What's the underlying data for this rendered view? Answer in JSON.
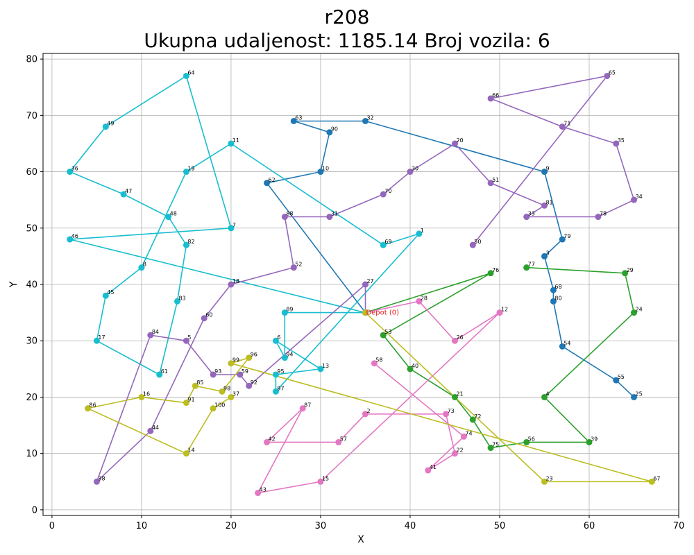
{
  "chart_data": {
    "type": "scatter",
    "title_line1": "r208",
    "title_line2": "Ukupna udaljenost: 1185.14    Broj vozila: 6",
    "xlabel": "X",
    "ylabel": "Y",
    "xlim": [
      -1,
      70
    ],
    "ylim": [
      -1,
      81
    ],
    "xticks": [
      0,
      10,
      20,
      30,
      40,
      50,
      60,
      70
    ],
    "yticks": [
      0,
      10,
      20,
      30,
      40,
      50,
      60,
      70,
      80
    ],
    "grid": true,
    "depot": {
      "x": 35,
      "y": 35,
      "label": "Depot (0)"
    },
    "series": [
      {
        "color": "#1f77b4",
        "points": [
          {
            "id": "0",
            "x": 35,
            "y": 35
          },
          {
            "id": "62",
            "x": 24,
            "y": 58
          },
          {
            "id": "10",
            "x": 30,
            "y": 60
          },
          {
            "id": "90",
            "x": 31,
            "y": 67
          },
          {
            "id": "63",
            "x": 27,
            "y": 69
          },
          {
            "id": "32",
            "x": 35,
            "y": 69
          },
          {
            "id": "9",
            "x": 55,
            "y": 60
          },
          {
            "id": "79",
            "x": 57,
            "y": 48
          },
          {
            "id": "3",
            "x": 55,
            "y": 45
          },
          {
            "id": "68",
            "x": 56,
            "y": 39
          },
          {
            "id": "80",
            "x": 56,
            "y": 37
          },
          {
            "id": "54",
            "x": 57,
            "y": 29
          },
          {
            "id": "55",
            "x": 63,
            "y": 23
          },
          {
            "id": "25",
            "x": 65,
            "y": 20
          }
        ]
      },
      {
        "color": "#2ca02c",
        "points": [
          {
            "id": "0",
            "x": 35,
            "y": 35
          },
          {
            "id": "76",
            "x": 49,
            "y": 42
          },
          {
            "id": "53",
            "x": 37,
            "y": 31
          },
          {
            "id": "40",
            "x": 40,
            "y": 25
          },
          {
            "id": "21",
            "x": 45,
            "y": 20
          },
          {
            "id": "72",
            "x": 47,
            "y": 16
          },
          {
            "id": "75",
            "x": 49,
            "y": 11
          },
          {
            "id": "56",
            "x": 53,
            "y": 12
          },
          {
            "id": "39",
            "x": 60,
            "y": 12
          },
          {
            "id": "4",
            "x": 55,
            "y": 20
          },
          {
            "id": "24",
            "x": 65,
            "y": 35
          },
          {
            "id": "29",
            "x": 64,
            "y": 42
          },
          {
            "id": "77",
            "x": 53,
            "y": 43
          }
        ]
      },
      {
        "color": "#17becf",
        "points": [
          {
            "id": "0",
            "x": 35,
            "y": 35
          },
          {
            "id": "89",
            "x": 26,
            "y": 35
          },
          {
            "id": "94",
            "x": 26,
            "y": 27
          },
          {
            "id": "6",
            "x": 25,
            "y": 30
          },
          {
            "id": "13",
            "x": 30,
            "y": 25
          },
          {
            "id": "95",
            "x": 25,
            "y": 24
          },
          {
            "id": "97",
            "x": 25,
            "y": 21
          },
          {
            "id": "1",
            "x": 41,
            "y": 49
          },
          {
            "id": "69",
            "x": 37,
            "y": 47
          },
          {
            "id": "11",
            "x": 20,
            "y": 65
          },
          {
            "id": "19",
            "x": 15,
            "y": 60
          },
          {
            "id": "8",
            "x": 10,
            "y": 43
          },
          {
            "id": "45",
            "x": 6,
            "y": 38
          },
          {
            "id": "17",
            "x": 5,
            "y": 30
          },
          {
            "id": "61",
            "x": 12,
            "y": 24
          },
          {
            "id": "83",
            "x": 14,
            "y": 37
          },
          {
            "id": "82",
            "x": 15,
            "y": 47
          },
          {
            "id": "48",
            "x": 13,
            "y": 52
          },
          {
            "id": "47",
            "x": 8,
            "y": 56
          },
          {
            "id": "36",
            "x": 2,
            "y": 60
          },
          {
            "id": "49",
            "x": 6,
            "y": 68
          },
          {
            "id": "64",
            "x": 15,
            "y": 77
          },
          {
            "id": "7",
            "x": 20,
            "y": 50
          },
          {
            "id": "46",
            "x": 2,
            "y": 48
          },
          {
            "id": "0",
            "x": 35,
            "y": 35
          }
        ]
      },
      {
        "color": "#9467bd",
        "points": [
          {
            "id": "0",
            "x": 35,
            "y": 35
          },
          {
            "id": "27",
            "x": 35,
            "y": 40
          },
          {
            "id": "92",
            "x": 22,
            "y": 22
          },
          {
            "id": "59",
            "x": 21,
            "y": 24
          },
          {
            "id": "93",
            "x": 18,
            "y": 24
          },
          {
            "id": "5",
            "x": 15,
            "y": 30
          },
          {
            "id": "84",
            "x": 11,
            "y": 31
          },
          {
            "id": "38",
            "x": 5,
            "y": 5
          },
          {
            "id": "44",
            "x": 11,
            "y": 14
          },
          {
            "id": "60",
            "x": 17,
            "y": 34
          },
          {
            "id": "18",
            "x": 20,
            "y": 40
          },
          {
            "id": "52",
            "x": 27,
            "y": 43
          },
          {
            "id": "88",
            "x": 26,
            "y": 52
          },
          {
            "id": "31",
            "x": 31,
            "y": 52
          },
          {
            "id": "70",
            "x": 37,
            "y": 56
          },
          {
            "id": "30",
            "x": 40,
            "y": 60
          },
          {
            "id": "20",
            "x": 45,
            "y": 65
          },
          {
            "id": "51",
            "x": 49,
            "y": 58
          },
          {
            "id": "81",
            "x": 55,
            "y": 54
          },
          {
            "id": "33",
            "x": 53,
            "y": 52
          },
          {
            "id": "78",
            "x": 61,
            "y": 52
          },
          {
            "id": "34",
            "x": 65,
            "y": 55
          },
          {
            "id": "35",
            "x": 63,
            "y": 65
          },
          {
            "id": "71",
            "x": 57,
            "y": 68
          },
          {
            "id": "66",
            "x": 49,
            "y": 73
          },
          {
            "id": "65",
            "x": 62,
            "y": 77
          },
          {
            "id": "50",
            "x": 47,
            "y": 47
          }
        ]
      },
      {
        "color": "#e377c2",
        "points": [
          {
            "id": "0",
            "x": 35,
            "y": 35
          },
          {
            "id": "28",
            "x": 41,
            "y": 37
          },
          {
            "id": "26",
            "x": 45,
            "y": 30
          },
          {
            "id": "12",
            "x": 50,
            "y": 35
          },
          {
            "id": "15",
            "x": 30,
            "y": 5
          },
          {
            "id": "43",
            "x": 23,
            "y": 3
          },
          {
            "id": "87",
            "x": 28,
            "y": 18
          },
          {
            "id": "42",
            "x": 24,
            "y": 12
          },
          {
            "id": "57",
            "x": 32,
            "y": 12
          },
          {
            "id": "2",
            "x": 35,
            "y": 17
          },
          {
            "id": "73",
            "x": 44,
            "y": 17
          },
          {
            "id": "22",
            "x": 45,
            "y": 10
          },
          {
            "id": "41",
            "x": 42,
            "y": 7
          },
          {
            "id": "74",
            "x": 46,
            "y": 13
          },
          {
            "id": "58",
            "x": 36,
            "y": 26
          }
        ]
      },
      {
        "color": "#bcbd22",
        "points": [
          {
            "id": "0",
            "x": 35,
            "y": 35
          },
          {
            "id": "23",
            "x": 55,
            "y": 5
          },
          {
            "id": "67",
            "x": 67,
            "y": 5
          },
          {
            "id": "99",
            "x": 20,
            "y": 26
          },
          {
            "id": "96",
            "x": 22,
            "y": 27
          },
          {
            "id": "98",
            "x": 19,
            "y": 21
          },
          {
            "id": "85",
            "x": 16,
            "y": 22
          },
          {
            "id": "91",
            "x": 15,
            "y": 19
          },
          {
            "id": "16",
            "x": 10,
            "y": 20
          },
          {
            "id": "86",
            "x": 4,
            "y": 18
          },
          {
            "id": "14",
            "x": 15,
            "y": 10
          },
          {
            "id": "100",
            "x": 18,
            "y": 18
          },
          {
            "id": "37",
            "x": 20,
            "y": 20
          }
        ]
      }
    ]
  }
}
